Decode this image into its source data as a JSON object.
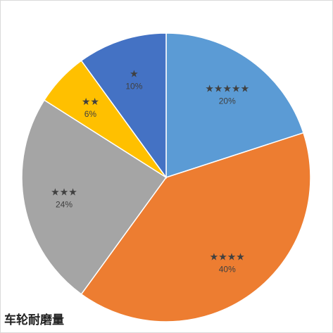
{
  "caption": "车轮耐磨量",
  "chart_data": {
    "type": "pie",
    "title": "",
    "start": "12 o'clock, clockwise",
    "slices": [
      {
        "label": "★★★★★",
        "value": 20,
        "display": "20%",
        "color": "#5B9BD5"
      },
      {
        "label": "★★★★",
        "value": 40,
        "display": "40%",
        "color": "#ED7D31"
      },
      {
        "label": "★★★",
        "value": 24,
        "display": "24%",
        "color": "#A5A5A5"
      },
      {
        "label": "★★",
        "value": 6,
        "display": "6%",
        "color": "#FFC000"
      },
      {
        "label": "★",
        "value": 10,
        "display": "10%",
        "color": "#4472C4"
      }
    ]
  }
}
